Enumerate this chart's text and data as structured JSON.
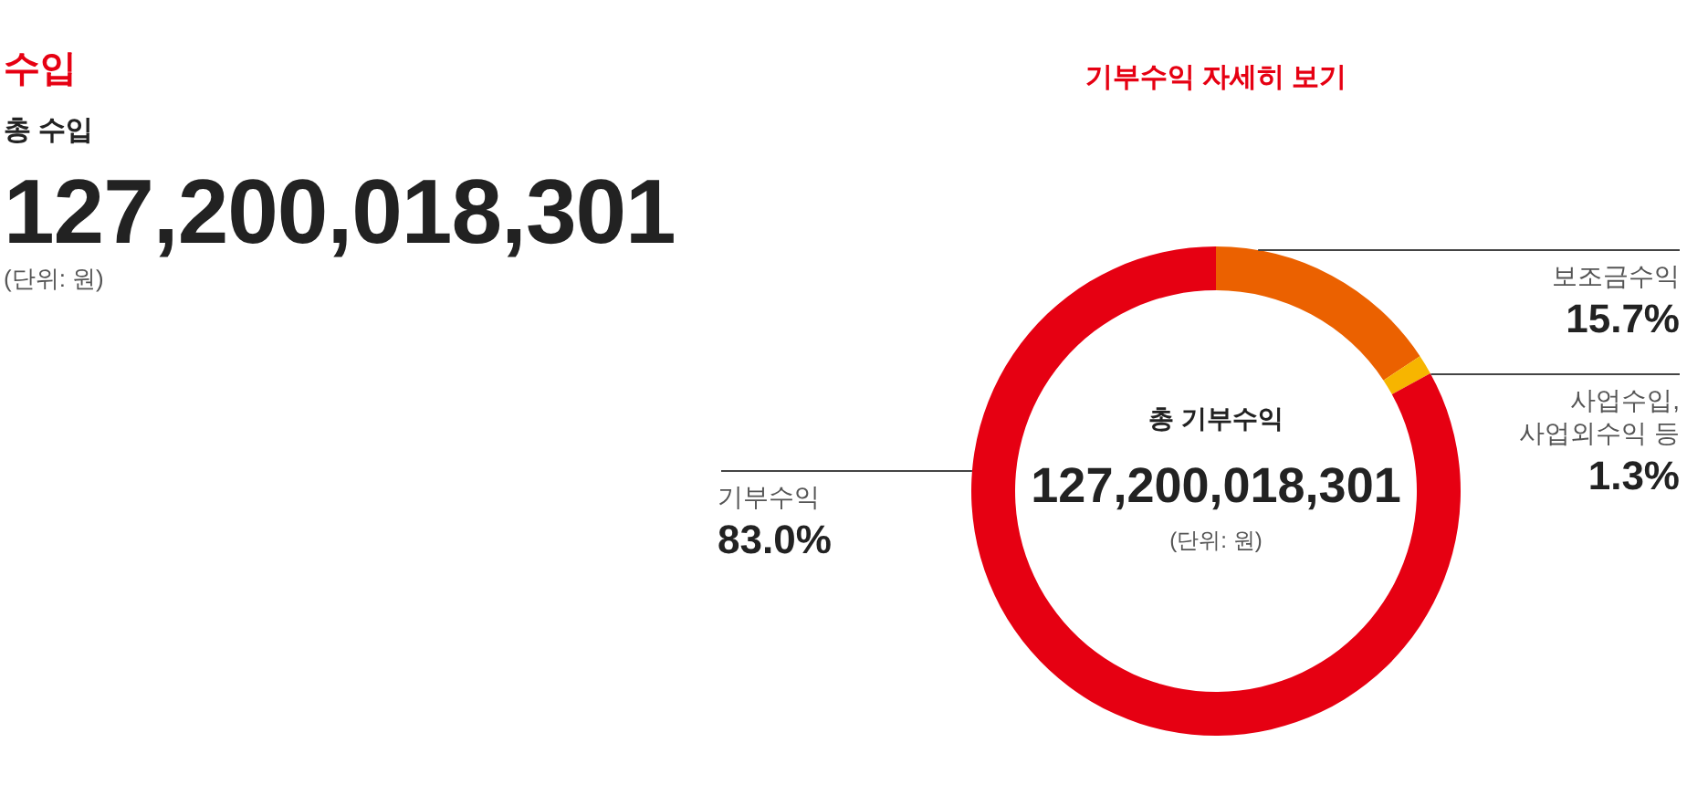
{
  "chart_data": [
    {
      "type": "other",
      "title": "수입",
      "subtitle": "총 수입",
      "annotations": [
        "127,200,018,301",
        "(단위: 원)"
      ]
    },
    {
      "type": "donut",
      "title": "기부수익 자세히 보기",
      "categories": [
        "보조금수익",
        "사업수입, 사업외수익 등",
        "기부수익"
      ],
      "values": [
        15.7,
        1.3,
        83.0
      ],
      "colors": [
        "#eb6100",
        "#f7b500",
        "#e60012"
      ],
      "value_labels": [
        "15.7%",
        "1.3%",
        "83.0%"
      ],
      "annotations": [
        "총 기부수익",
        "127,200,018,301",
        "(단위: 원)"
      ]
    }
  ]
}
